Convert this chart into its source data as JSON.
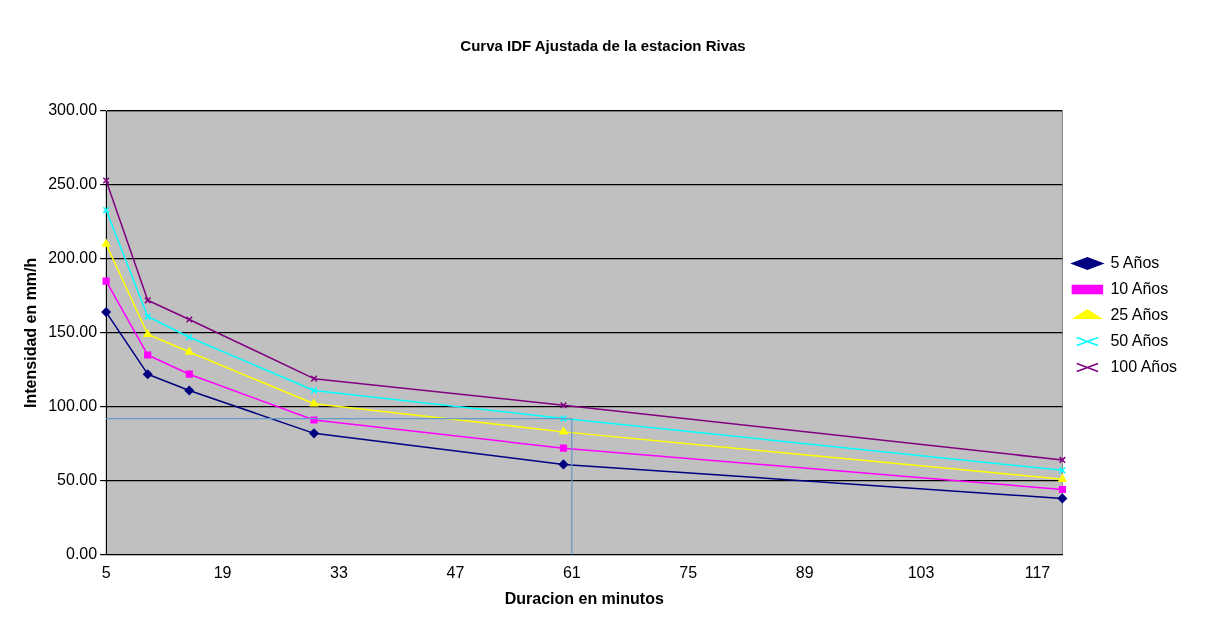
{
  "chart_data": {
    "type": "line",
    "title": "Curva IDF Ajustada de la estacion Rivas",
    "xlabel": "Duracion en minutos",
    "ylabel": "Intensidad en mm/h",
    "x": [
      5,
      10,
      15,
      30,
      60,
      120
    ],
    "xlim": [
      5,
      120
    ],
    "xticks": [
      5,
      19,
      33,
      47,
      61,
      75,
      89,
      103,
      117
    ],
    "ylim": [
      0,
      300
    ],
    "yticks": [
      {
        "value": 0,
        "label": "0.00"
      },
      {
        "value": 50,
        "label": "50.00"
      },
      {
        "value": 100,
        "label": "100.00"
      },
      {
        "value": 150,
        "label": "150.00"
      },
      {
        "value": 200,
        "label": "200.00"
      },
      {
        "value": 250,
        "label": "250.00"
      },
      {
        "value": 300,
        "label": "300.00"
      }
    ],
    "grid": "y",
    "legend": "right",
    "series": [
      {
        "name": "5 Años",
        "color": "#000080",
        "marker": "diamond",
        "values": [
          164,
          122,
          111,
          82,
          61,
          38
        ]
      },
      {
        "name": "10 Años",
        "color": "#ff00ff",
        "marker": "square",
        "values": [
          185,
          135,
          122,
          91,
          72,
          44
        ]
      },
      {
        "name": "25 Años",
        "color": "#ffff00",
        "marker": "triangle",
        "values": [
          210,
          149,
          137,
          102,
          83,
          51
        ]
      },
      {
        "name": "50 Años",
        "color": "#00ffff",
        "marker": "cross",
        "values": [
          233,
          161,
          147,
          111,
          92,
          57
        ]
      },
      {
        "name": "100 Años",
        "color": "#800080",
        "marker": "cross",
        "values": [
          253,
          172,
          159,
          119,
          101,
          64
        ]
      }
    ],
    "ref_lines": [
      {
        "axis": "x",
        "value": 61,
        "color": "#6699cc"
      },
      {
        "axis": "y",
        "value": 92,
        "color": "#6699cc"
      }
    ]
  }
}
